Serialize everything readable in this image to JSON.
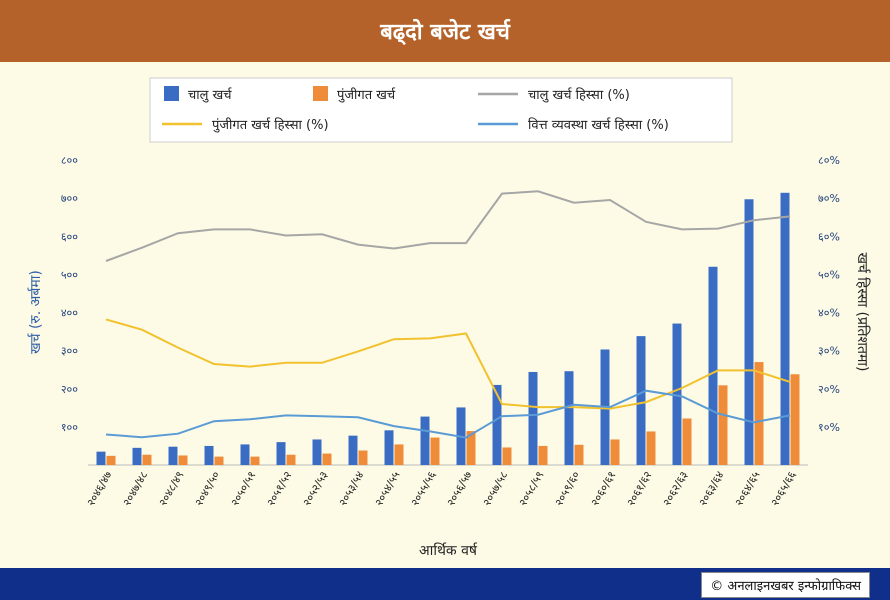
{
  "title": "बढ्दो बजेट खर्च",
  "credit": "अनलाइनखबर इन्फोग्राफिक्स",
  "credit_icon": "copyright-icon",
  "colors": {
    "header": "#b5622a",
    "footer": "#0f2f8a",
    "background": "#fdfbe6",
    "current_bar": "#3a6cc4",
    "capital_bar": "#ef8c3a",
    "current_share": "#a6a6a6",
    "capital_share": "#f2c12e",
    "finance_share": "#5b9bd5"
  },
  "chart_data": {
    "type": "bar",
    "xlabel": "आर्थिक वर्ष",
    "ylabel": "खर्च (रु. अर्बमा)",
    "y2label": "खर्च हिस्सा (प्रतिशतमा)",
    "ylim": [
      0,
      800
    ],
    "y2lim": [
      0,
      80
    ],
    "yticks": [
      "१००",
      "२००",
      "३००",
      "४००",
      "५००",
      "६००",
      "७००",
      "८००"
    ],
    "y2ticks": [
      "१०%",
      "२०%",
      "३०%",
      "४०%",
      "५०%",
      "६०%",
      "७०%",
      "८०%"
    ],
    "grid": false,
    "legend_position": "top",
    "categories": [
      "२०४६/४७",
      "२०४७/४८",
      "२०४८/४९",
      "२०४९/५०",
      "२०५०/५१",
      "२०५१/५२",
      "२०५२/५३",
      "२०५३/५४",
      "२०५४/५५",
      "२०५५/५६",
      "२०५६/५७",
      "२०५७/५८",
      "२०५८/५९",
      "२०५९/६०",
      "२०६०/६१",
      "२०६१/६२",
      "२०६२/६३",
      "२०६३/६४",
      "२०६४/६५",
      "२०६५/६६"
    ],
    "series": [
      {
        "name": "चालु खर्च",
        "kind": "bar",
        "axis": "left",
        "values": [
          35,
          45,
          48,
          50,
          54,
          60,
          67,
          77,
          91,
          127,
          151,
          210,
          244,
          246,
          303,
          338,
          371,
          520,
          697,
          714
        ]
      },
      {
        "name": "पुंजीगत खर्च",
        "kind": "bar",
        "axis": "left",
        "values": [
          24,
          27,
          25,
          22,
          22,
          27,
          30,
          38,
          54,
          72,
          89,
          46,
          50,
          53,
          67,
          88,
          122,
          209,
          270,
          238
        ]
      },
      {
        "name": "चालु खर्च हिस्सा (%)",
        "kind": "line",
        "axis": "right",
        "values": [
          53.5,
          57.0,
          60.8,
          61.8,
          61.8,
          60.2,
          60.5,
          57.8,
          56.8,
          58.2,
          58.2,
          71.2,
          71.8,
          68.8,
          69.5,
          63.8,
          61.8,
          62.0,
          64.2,
          65.2
        ]
      },
      {
        "name": "पुंजीगत खर्च हिस्सा (%)",
        "kind": "line",
        "axis": "right",
        "values": [
          38.2,
          35.5,
          30.8,
          26.5,
          25.8,
          26.8,
          26.8,
          29.8,
          33.0,
          33.2,
          34.5,
          16.0,
          15.2,
          15.2,
          14.8,
          16.5,
          20.2,
          24.8,
          24.8,
          21.8
        ]
      },
      {
        "name": "वित्त व्यवस्था खर्च हिस्सा (%)",
        "kind": "line",
        "axis": "right",
        "values": [
          8.0,
          7.3,
          8.2,
          11.5,
          12.0,
          13.0,
          12.8,
          12.5,
          10.2,
          8.8,
          7.2,
          12.8,
          13.2,
          15.8,
          15.2,
          19.5,
          18.0,
          13.5,
          11.2,
          13.0
        ]
      }
    ]
  }
}
